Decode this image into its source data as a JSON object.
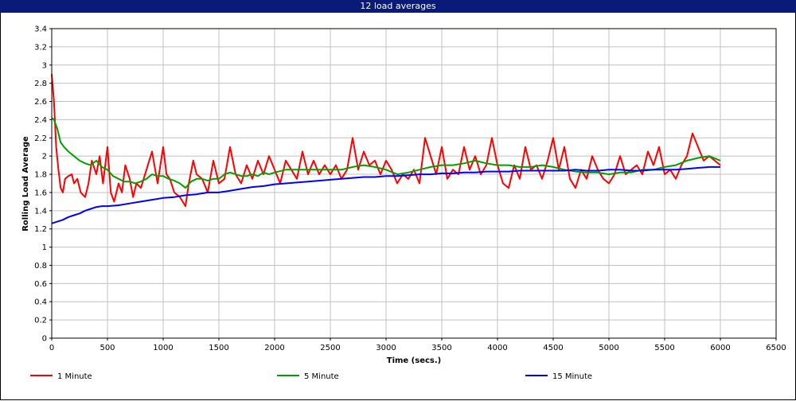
{
  "window": {
    "title": "12 load averages"
  },
  "chart_data": {
    "type": "line",
    "title": "",
    "xlabel": "Time (secs.)",
    "ylabel": "Rolling Load Average",
    "xlim": [
      0,
      6500
    ],
    "ylim": [
      0,
      3.4
    ],
    "x_ticks": [
      0,
      500,
      1000,
      1500,
      2000,
      2500,
      3000,
      3500,
      4000,
      4500,
      5000,
      5500,
      6000,
      6500
    ],
    "y_ticks": [
      0,
      0.2,
      0.4,
      0.6,
      0.8,
      1,
      1.2,
      1.4,
      1.6,
      1.8,
      2,
      2.2,
      2.4,
      2.6,
      2.8,
      3,
      3.2,
      3.4
    ],
    "grid": true,
    "legend_position": "bottom",
    "series": [
      {
        "name": "1 Minute",
        "color": "#ff0000",
        "x": [
          0,
          20,
          40,
          60,
          80,
          100,
          120,
          150,
          180,
          200,
          230,
          260,
          300,
          330,
          360,
          400,
          430,
          460,
          500,
          530,
          560,
          600,
          630,
          660,
          700,
          730,
          760,
          800,
          850,
          900,
          950,
          1000,
          1030,
          1060,
          1100,
          1150,
          1200,
          1230,
          1270,
          1300,
          1350,
          1400,
          1450,
          1500,
          1550,
          1600,
          1650,
          1700,
          1750,
          1800,
          1850,
          1900,
          1950,
          2000,
          2050,
          2100,
          2150,
          2200,
          2250,
          2300,
          2350,
          2400,
          2450,
          2500,
          2550,
          2600,
          2650,
          2700,
          2750,
          2800,
          2850,
          2900,
          2950,
          3000,
          3050,
          3100,
          3150,
          3200,
          3250,
          3300,
          3350,
          3400,
          3450,
          3500,
          3550,
          3600,
          3650,
          3700,
          3750,
          3800,
          3850,
          3900,
          3950,
          4000,
          4050,
          4100,
          4150,
          4200,
          4250,
          4300,
          4350,
          4400,
          4450,
          4500,
          4550,
          4600,
          4650,
          4700,
          4750,
          4800,
          4850,
          4900,
          4950,
          5000,
          5050,
          5100,
          5150,
          5200,
          5250,
          5300,
          5350,
          5400,
          5450,
          5500,
          5550,
          5600,
          5650,
          5700,
          5750,
          5800,
          5850,
          5900,
          5950,
          6000
        ],
        "values": [
          2.9,
          2.6,
          2.1,
          1.85,
          1.65,
          1.6,
          1.75,
          1.78,
          1.8,
          1.7,
          1.75,
          1.6,
          1.55,
          1.7,
          1.95,
          1.8,
          2.0,
          1.7,
          2.1,
          1.6,
          1.5,
          1.7,
          1.6,
          1.9,
          1.75,
          1.55,
          1.7,
          1.65,
          1.85,
          2.05,
          1.7,
          2.1,
          1.8,
          1.75,
          1.6,
          1.55,
          1.45,
          1.7,
          1.95,
          1.8,
          1.75,
          1.6,
          1.95,
          1.7,
          1.75,
          2.1,
          1.8,
          1.7,
          1.9,
          1.75,
          1.95,
          1.8,
          2.0,
          1.85,
          1.7,
          1.95,
          1.85,
          1.75,
          2.05,
          1.8,
          1.95,
          1.8,
          1.9,
          1.8,
          1.9,
          1.75,
          1.85,
          2.2,
          1.85,
          2.05,
          1.9,
          1.95,
          1.8,
          1.95,
          1.85,
          1.7,
          1.8,
          1.75,
          1.85,
          1.7,
          2.2,
          2.0,
          1.8,
          2.1,
          1.75,
          1.85,
          1.8,
          2.1,
          1.85,
          2.0,
          1.8,
          1.9,
          2.2,
          1.9,
          1.7,
          1.65,
          1.9,
          1.75,
          2.1,
          1.85,
          1.9,
          1.75,
          1.95,
          2.2,
          1.85,
          2.1,
          1.75,
          1.65,
          1.85,
          1.75,
          2.0,
          1.85,
          1.75,
          1.7,
          1.8,
          2.0,
          1.8,
          1.85,
          1.9,
          1.8,
          2.05,
          1.9,
          2.1,
          1.8,
          1.85,
          1.75,
          1.9,
          2.0,
          2.25,
          2.1,
          1.95,
          2.0,
          1.95,
          1.9
        ]
      },
      {
        "name": "5 Minute",
        "color": "#00a000",
        "x": [
          0,
          20,
          50,
          80,
          110,
          150,
          200,
          250,
          300,
          350,
          400,
          450,
          500,
          550,
          600,
          650,
          700,
          750,
          800,
          850,
          900,
          950,
          1000,
          1050,
          1100,
          1150,
          1200,
          1250,
          1300,
          1350,
          1400,
          1450,
          1500,
          1550,
          1600,
          1650,
          1700,
          1750,
          1800,
          1850,
          1900,
          1950,
          2000,
          2100,
          2200,
          2300,
          2400,
          2500,
          2600,
          2700,
          2800,
          2900,
          3000,
          3100,
          3200,
          3300,
          3400,
          3500,
          3600,
          3700,
          3800,
          3900,
          4000,
          4100,
          4200,
          4300,
          4400,
          4500,
          4600,
          4700,
          4800,
          4900,
          5000,
          5100,
          5200,
          5300,
          5400,
          5500,
          5600,
          5700,
          5800,
          5900,
          6000
        ],
        "values": [
          2.42,
          2.4,
          2.3,
          2.15,
          2.1,
          2.05,
          2.0,
          1.95,
          1.92,
          1.9,
          1.95,
          1.88,
          1.85,
          1.78,
          1.75,
          1.72,
          1.72,
          1.7,
          1.72,
          1.75,
          1.8,
          1.78,
          1.78,
          1.75,
          1.73,
          1.7,
          1.65,
          1.72,
          1.75,
          1.75,
          1.73,
          1.75,
          1.75,
          1.8,
          1.82,
          1.8,
          1.78,
          1.78,
          1.8,
          1.78,
          1.82,
          1.8,
          1.82,
          1.85,
          1.85,
          1.85,
          1.85,
          1.85,
          1.85,
          1.88,
          1.9,
          1.88,
          1.85,
          1.8,
          1.82,
          1.85,
          1.88,
          1.9,
          1.9,
          1.92,
          1.95,
          1.92,
          1.9,
          1.9,
          1.88,
          1.88,
          1.9,
          1.88,
          1.85,
          1.83,
          1.82,
          1.82,
          1.8,
          1.82,
          1.82,
          1.85,
          1.85,
          1.88,
          1.9,
          1.95,
          1.98,
          2.0,
          1.95
        ]
      },
      {
        "name": "15 Minute",
        "color": "#0000ff",
        "x": [
          0,
          50,
          100,
          150,
          200,
          250,
          300,
          350,
          400,
          450,
          500,
          600,
          700,
          800,
          900,
          1000,
          1100,
          1200,
          1300,
          1400,
          1500,
          1600,
          1700,
          1800,
          1900,
          2000,
          2100,
          2200,
          2300,
          2400,
          2500,
          2600,
          2700,
          2800,
          2900,
          3000,
          3100,
          3200,
          3300,
          3400,
          3500,
          3600,
          3700,
          3800,
          3900,
          4000,
          4100,
          4200,
          4300,
          4400,
          4500,
          4600,
          4700,
          4800,
          4900,
          5000,
          5100,
          5200,
          5300,
          5400,
          5500,
          5600,
          5700,
          5800,
          5900,
          6000
        ],
        "values": [
          1.26,
          1.28,
          1.3,
          1.33,
          1.35,
          1.37,
          1.4,
          1.42,
          1.44,
          1.45,
          1.45,
          1.46,
          1.48,
          1.5,
          1.52,
          1.54,
          1.55,
          1.57,
          1.58,
          1.6,
          1.6,
          1.62,
          1.64,
          1.66,
          1.67,
          1.69,
          1.7,
          1.71,
          1.72,
          1.73,
          1.74,
          1.75,
          1.76,
          1.77,
          1.77,
          1.78,
          1.78,
          1.79,
          1.8,
          1.8,
          1.81,
          1.81,
          1.82,
          1.82,
          1.83,
          1.83,
          1.83,
          1.84,
          1.84,
          1.84,
          1.84,
          1.84,
          1.85,
          1.84,
          1.84,
          1.85,
          1.85,
          1.84,
          1.84,
          1.85,
          1.85,
          1.85,
          1.86,
          1.87,
          1.88,
          1.88
        ]
      }
    ]
  }
}
